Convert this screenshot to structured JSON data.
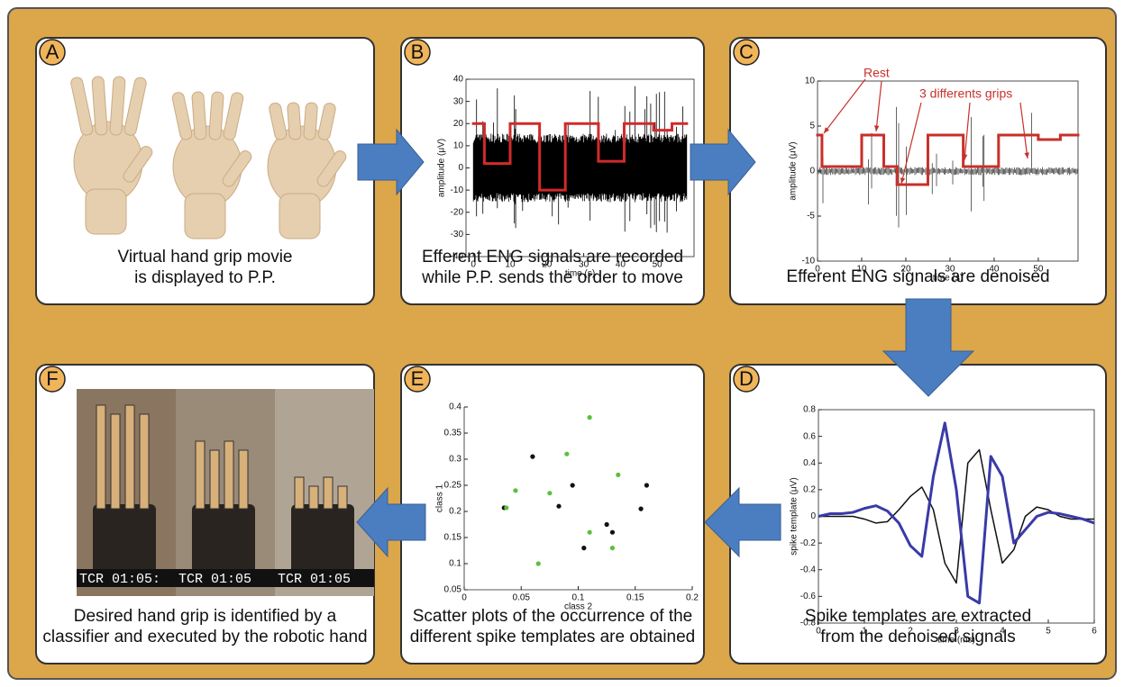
{
  "panels": [
    {
      "letter": "A",
      "caption": [
        "Virtual hand grip movie",
        "is displayed to P.P."
      ]
    },
    {
      "letter": "B",
      "caption": [
        "Efferent ENG signals are recorded",
        "while P.P. sends the order to move"
      ],
      "chart": {
        "type": "step",
        "xlabel": "time (s)",
        "ylabel": "amplitude (μV)",
        "box": true,
        "xlim": [
          -2,
          60
        ],
        "ylim": [
          -40,
          40
        ],
        "xticks": [
          0,
          10,
          20,
          30,
          40,
          50
        ],
        "yticks": [
          -40,
          -30,
          -20,
          -10,
          0,
          10,
          20,
          30,
          40
        ],
        "series": [
          {
            "color": "#d22a2a",
            "bins": [
              0,
              3,
              10,
              18,
              25,
              34,
              41,
              49,
              54,
              58
            ],
            "values": [
              20,
              2,
              20,
              -10,
              20,
              3,
              20,
              17,
              20
            ]
          }
        ]
      }
    },
    {
      "letter": "C",
      "caption": [
        "Efferent ENG signals are denoised"
      ],
      "chart": {
        "type": "step",
        "xlabel": "time (s)",
        "ylabel": "amplitude (μV)",
        "box": true,
        "xlim": [
          0,
          59
        ],
        "ylim": [
          -10,
          10
        ],
        "xticks": [
          0,
          10,
          20,
          30,
          40,
          50
        ],
        "yticks": [
          -10,
          -5,
          0,
          5,
          10
        ],
        "annotations": [
          "Rest",
          "3 differents grips"
        ],
        "series": [
          {
            "color": "#c8302a",
            "bins": [
              0,
              1,
              10,
              15,
              18,
              25,
              33,
              41,
              50,
              55,
              59
            ],
            "values": [
              4,
              0.5,
              4,
              0.5,
              -1.5,
              4,
              0.5,
              4,
              3.5,
              4
            ]
          }
        ]
      }
    },
    {
      "letter": "D",
      "caption": [
        "Spike templates are extracted",
        "from the denoised signals"
      ],
      "chart": {
        "type": "line",
        "xlabel": "time (ms)",
        "ylabel": "spike template (μV)",
        "box": true,
        "xlim": [
          0,
          6
        ],
        "ylim": [
          -0.8,
          0.8
        ],
        "xticks": [
          0,
          1,
          2,
          3,
          4,
          5,
          6
        ],
        "yticks": [
          -0.8,
          -0.6,
          -0.4,
          -0.2,
          0,
          0.2,
          0.4,
          0.6,
          0.8
        ],
        "x": [
          0,
          0.25,
          0.5,
          0.75,
          1,
          1.25,
          1.5,
          1.75,
          2,
          2.25,
          2.5,
          2.75,
          3,
          3.25,
          3.5,
          3.75,
          4,
          4.25,
          4.5,
          4.75,
          5,
          5.25,
          5.5,
          5.75,
          6
        ],
        "series": [
          {
            "color": "#111111",
            "width": 1.5,
            "values": [
              0,
              0,
              0,
              0,
              -0.02,
              -0.05,
              -0.04,
              0.05,
              0.15,
              0.22,
              0.05,
              -0.35,
              -0.5,
              0.4,
              0.5,
              0.05,
              -0.35,
              -0.25,
              0,
              0.07,
              0.05,
              0,
              -0.02,
              -0.02,
              -0.02
            ]
          },
          {
            "color": "#3a3aa8",
            "width": 3,
            "values": [
              0,
              0.02,
              0.02,
              0.03,
              0.06,
              0.08,
              0.04,
              -0.05,
              -0.22,
              -0.3,
              0.3,
              0.7,
              0.2,
              -0.6,
              -0.65,
              0.45,
              0.3,
              -0.2,
              -0.1,
              0,
              0.03,
              0.02,
              0,
              -0.02,
              -0.05
            ]
          }
        ]
      }
    },
    {
      "letter": "E",
      "caption": [
        "Scatter plots of the occurrence of the",
        "different spike templates are obtained"
      ],
      "chart": {
        "type": "scatter",
        "xlabel": "class 2",
        "ylabel": "class 1",
        "box": false,
        "xlim": [
          0,
          0.2
        ],
        "ylim": [
          0.05,
          0.4
        ],
        "xticks": [
          0,
          0.05,
          0.1,
          0.15,
          0.2
        ],
        "yticks": [
          0.05,
          0.1,
          0.15,
          0.2,
          0.25,
          0.3,
          0.35,
          0.4
        ],
        "series": [
          {
            "color": "#111111",
            "x": [
              0.035,
              0.06,
              0.095,
              0.083,
              0.125,
              0.13,
              0.105,
              0.155,
              0.16
            ],
            "values": [
              0.207,
              0.305,
              0.25,
              0.21,
              0.175,
              0.16,
              0.13,
              0.205,
              0.25
            ]
          },
          {
            "color": "#5cbf3c",
            "x": [
              0.037,
              0.045,
              0.075,
              0.09,
              0.11,
              0.135,
              0.11,
              0.13,
              0.065
            ],
            "values": [
              0.207,
              0.24,
              0.235,
              0.31,
              0.38,
              0.27,
              0.16,
              0.13,
              0.1
            ]
          }
        ]
      }
    },
    {
      "letter": "F",
      "caption": [
        "Desired hand grip is identified by a",
        "classifier and executed by the robotic hand"
      ],
      "overlays": [
        "TCR 01:05:",
        "TCR 01:05",
        "TCR 01:05"
      ]
    }
  ]
}
